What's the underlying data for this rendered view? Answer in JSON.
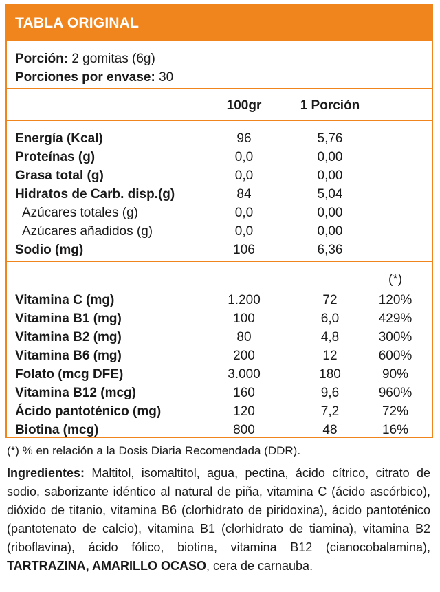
{
  "header": {
    "title": "TABLA ORIGINAL"
  },
  "portion": {
    "label1": "Porción:",
    "value1": " 2 gomitas (6g)",
    "label2": "Porciones por envase:",
    "value2": " 30"
  },
  "columns": {
    "col1": "100gr",
    "col2": "1 Porción",
    "col3": "(*)"
  },
  "macros": [
    {
      "label": "Energía (Kcal)",
      "v100": "96",
      "vpor": "5,76",
      "sub": false
    },
    {
      "label": "Proteínas (g)",
      "v100": "0,0",
      "vpor": "0,00",
      "sub": false
    },
    {
      "label": "Grasa total (g)",
      "v100": "0,0",
      "vpor": "0,00",
      "sub": false
    },
    {
      "label": "Hidratos de Carb. disp.(g)",
      "v100": "84",
      "vpor": "5,04",
      "sub": false
    },
    {
      "label": "Azúcares totales (g)",
      "v100": "0,0",
      "vpor": "0,00",
      "sub": true
    },
    {
      "label": "Azúcares añadidos (g)",
      "v100": "0,0",
      "vpor": "0,00",
      "sub": true
    },
    {
      "label": "Sodio (mg)",
      "v100": "106",
      "vpor": "6,36",
      "sub": false
    }
  ],
  "vitamins": [
    {
      "label": "Vitamina C (mg)",
      "v100": "1.200",
      "vpor": "72",
      "pct": "120%"
    },
    {
      "label": "Vitamina B1 (mg)",
      "v100": "100",
      "vpor": "6,0",
      "pct": "429%"
    },
    {
      "label": "Vitamina B2 (mg)",
      "v100": "80",
      "vpor": "4,8",
      "pct": "300%"
    },
    {
      "label": "Vitamina B6 (mg)",
      "v100": "200",
      "vpor": "12",
      "pct": "600%"
    },
    {
      "label": "Folato (mcg DFE)",
      "v100": "3.000",
      "vpor": "180",
      "pct": "90%"
    },
    {
      "label": "Vitamina B12 (mcg)",
      "v100": "160",
      "vpor": "9,6",
      "pct": "960%"
    },
    {
      "label": "Ácido pantoténico (mg)",
      "v100": "120",
      "vpor": "7,2",
      "pct": "72%"
    },
    {
      "label": "Biotina (mcg)",
      "v100": "800",
      "vpor": "48",
      "pct": "16%"
    }
  ],
  "footnote": "(*) % en relación a la Dosis Diaria Recomendada (DDR).",
  "ingredients": {
    "label": "Ingredientes:",
    "text": " Maltitol, isomaltitol, agua, pectina, ácido cítrico, citrato de sodio, saborizante idéntico al natural de piña, vitamina C (ácido ascórbico), dióxido de titanio, vitamina B6 (clorhidrato de piridoxina), ácido pantoténico (pantotenato de calcio), vitamina B1 (clorhidrato de tiamina), vitamina B2 (riboflavina), ácido fólico, biotina, vitamina B12 (cianocobalamina), ",
    "bold_text": "TARTRAZINA, AMARILLO OCASO",
    "end_text": ", cera de carnauba."
  },
  "colors": {
    "accent": "#f0851e"
  }
}
